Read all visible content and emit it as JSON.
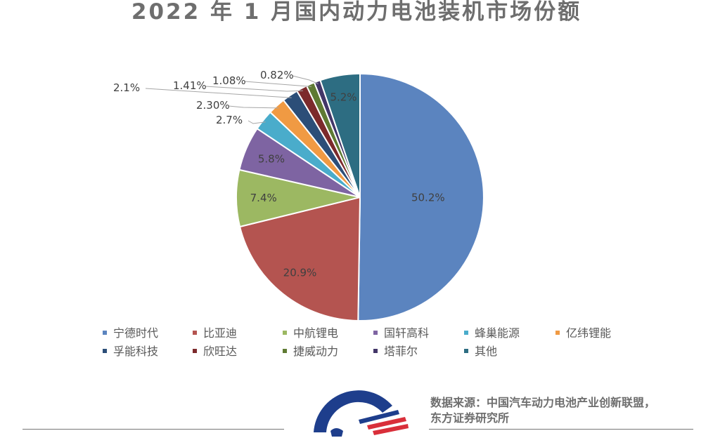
{
  "chart_data": {
    "type": "pie",
    "title": "2022 年 1 月国内动力电池装机市场份额",
    "slices": [
      {
        "name": "宁德时代",
        "value": 50.2,
        "label": "50.2%",
        "color": "#5b84bf"
      },
      {
        "name": "比亚迪",
        "value": 20.9,
        "label": "20.9%",
        "color": "#b45450"
      },
      {
        "name": "中航锂电",
        "value": 7.4,
        "label": "7.4%",
        "color": "#9cb862"
      },
      {
        "name": "国轩高科",
        "value": 5.8,
        "label": "5.8%",
        "color": "#7e64a2"
      },
      {
        "name": "蜂巢能源",
        "value": 2.7,
        "label": "2.7%",
        "color": "#4aaccb"
      },
      {
        "name": "亿纬锂能",
        "value": 2.3,
        "label": "2.30%",
        "color": "#f09a43"
      },
      {
        "name": "孚能科技",
        "value": 2.1,
        "label": "2.1%",
        "color": "#2c4e78"
      },
      {
        "name": "欣旺达",
        "value": 1.41,
        "label": "1.41%",
        "color": "#7c2a2c"
      },
      {
        "name": "捷威动力",
        "value": 1.08,
        "label": "1.08%",
        "color": "#5f7a33"
      },
      {
        "name": "塔菲尔",
        "value": 0.82,
        "label": "0.82%",
        "color": "#433668"
      },
      {
        "name": "其他",
        "value": 5.2,
        "label": "5.2%",
        "color": "#2d6d82"
      }
    ],
    "legend_position": "bottom"
  },
  "source": {
    "line1": "数据来源：中国汽车动力电池产业创新联盟，",
    "line2": "东方证券研究所"
  }
}
